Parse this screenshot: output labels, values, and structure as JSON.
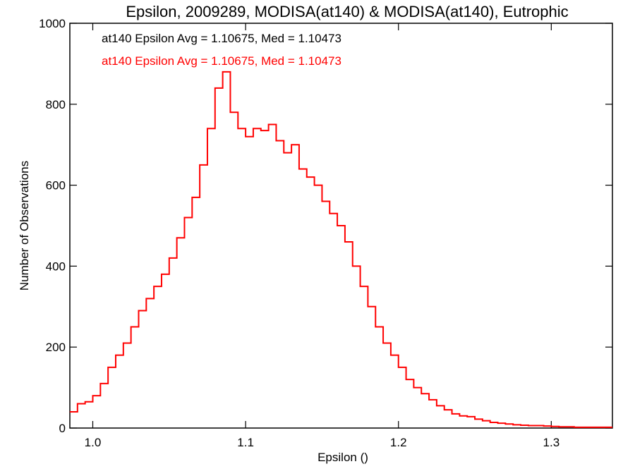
{
  "chart_data": {
    "type": "line",
    "title": "Epsilon, 2009289, MODISA(at140) & MODISA(at140), Eutrophic",
    "xlabel": "Epsilon ()",
    "ylabel": "Number of Observations",
    "xlim": [
      0.985,
      1.34
    ],
    "ylim": [
      0,
      1000
    ],
    "x_ticks": [
      1.0,
      1.1,
      1.2,
      1.3
    ],
    "x_tick_labels": [
      "1.0",
      "1.1",
      "1.2",
      "1.3"
    ],
    "y_ticks": [
      0,
      200,
      400,
      600,
      800,
      1000
    ],
    "y_tick_labels": [
      "0",
      "200",
      "400",
      "600",
      "800",
      "1000"
    ],
    "grid": false,
    "legend_position": "top-left",
    "annotations": [
      {
        "text": "at140 Epsilon Avg = 1.10675, Med = 1.10473",
        "color": "#000000"
      },
      {
        "text": "at140 Epsilon Avg = 1.10675, Med = 1.10473",
        "color": "#ff0000"
      }
    ],
    "series": [
      {
        "color": "#ff0000",
        "step": true,
        "x": [
          0.985,
          0.99,
          0.995,
          1.0,
          1.005,
          1.01,
          1.015,
          1.02,
          1.025,
          1.03,
          1.035,
          1.04,
          1.045,
          1.05,
          1.055,
          1.06,
          1.065,
          1.07,
          1.075,
          1.08,
          1.085,
          1.09,
          1.095,
          1.1,
          1.105,
          1.11,
          1.115,
          1.12,
          1.125,
          1.13,
          1.135,
          1.14,
          1.145,
          1.15,
          1.155,
          1.16,
          1.165,
          1.17,
          1.175,
          1.18,
          1.185,
          1.19,
          1.195,
          1.2,
          1.205,
          1.21,
          1.215,
          1.22,
          1.225,
          1.23,
          1.235,
          1.24,
          1.245,
          1.25,
          1.255,
          1.26,
          1.265,
          1.27,
          1.275,
          1.28,
          1.285,
          1.29,
          1.295,
          1.3,
          1.305,
          1.31,
          1.315,
          1.32,
          1.325,
          1.33,
          1.335
        ],
        "values": [
          40,
          60,
          65,
          80,
          110,
          150,
          180,
          210,
          250,
          290,
          320,
          350,
          380,
          420,
          470,
          520,
          570,
          650,
          740,
          840,
          880,
          780,
          740,
          720,
          740,
          735,
          750,
          710,
          680,
          700,
          640,
          620,
          600,
          560,
          530,
          500,
          460,
          400,
          350,
          300,
          250,
          210,
          180,
          150,
          120,
          100,
          85,
          70,
          55,
          45,
          35,
          30,
          28,
          22,
          18,
          14,
          12,
          10,
          8,
          7,
          6,
          6,
          5,
          4,
          3,
          3,
          2,
          2,
          2,
          2,
          2
        ]
      }
    ]
  }
}
